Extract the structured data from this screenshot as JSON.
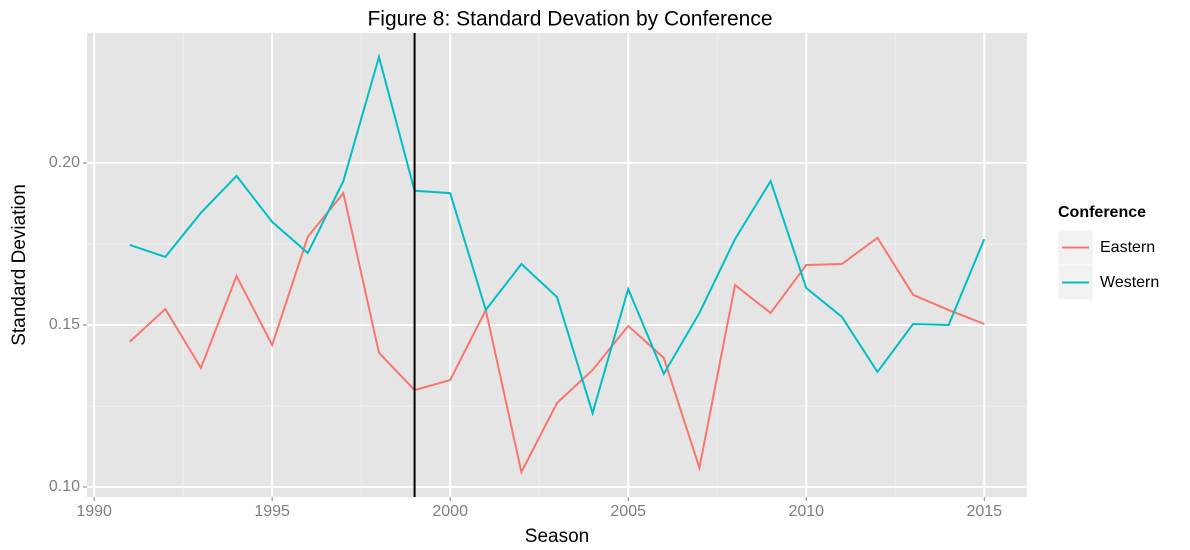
{
  "chart_data": {
    "type": "line",
    "title": "Figure 8: Standard Devation by Conference",
    "x_label": "Season",
    "y_label": "Standard Deviation",
    "legend_title": "Conference",
    "legend_position": "right",
    "grid": true,
    "x": [
      1991,
      1992,
      1993,
      1994,
      1995,
      1996,
      1997,
      1998,
      1999,
      2000,
      2001,
      2002,
      2003,
      2004,
      2005,
      2006,
      2007,
      2008,
      2009,
      2010,
      2011,
      2012,
      2013,
      2014,
      2015
    ],
    "series": [
      {
        "name": "Eastern",
        "color": "#f8766d",
        "values": [
          0.1448,
          0.1549,
          0.1367,
          0.1651,
          0.1438,
          0.1772,
          0.1907,
          0.1414,
          0.1299,
          0.133,
          0.1546,
          0.1046,
          0.1259,
          0.1361,
          0.1497,
          0.1398,
          0.1059,
          0.1623,
          0.1537,
          0.1685,
          0.1688,
          0.1769,
          0.1593,
          0.1546,
          0.1503
        ]
      },
      {
        "name": "Western",
        "color": "#00bfc4",
        "values": [
          0.1747,
          0.171,
          0.1846,
          0.196,
          0.1818,
          0.1722,
          0.1944,
          0.2327,
          0.1914,
          0.1907,
          0.1546,
          0.1688,
          0.1586,
          0.1228,
          0.1611,
          0.1349,
          0.1537,
          0.1765,
          0.1944,
          0.1614,
          0.1525,
          0.1355,
          0.1503,
          0.15,
          0.1765
        ]
      }
    ],
    "vline": 1999,
    "xlim": [
      1989.8,
      2016.2
    ],
    "xticks": [
      1990,
      1995,
      2000,
      2005,
      2010,
      2015
    ],
    "ylim": [
      0.0969,
      0.2401
    ],
    "yticks": [
      {
        "value": 0.1,
        "label": "0.10"
      },
      {
        "value": 0.15,
        "label": "0.15"
      },
      {
        "value": 0.2,
        "label": "0.20"
      }
    ]
  }
}
